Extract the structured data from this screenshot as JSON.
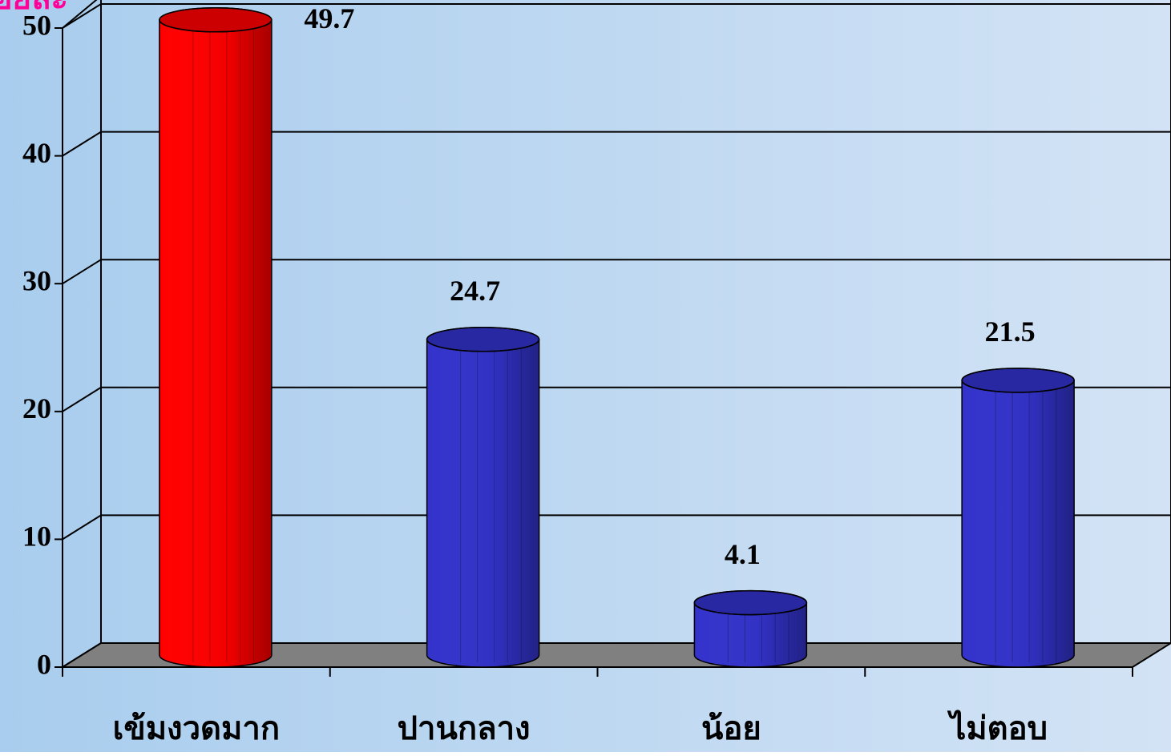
{
  "chart_data": {
    "type": "bar3d",
    "y_label": "ร้อยละ",
    "categories": [
      "เข้มงวดมาก",
      "ปานกลาง",
      "น้อย",
      "ไม่ตอบ"
    ],
    "values": [
      49.7,
      24.7,
      4.1,
      21.5
    ],
    "colors": [
      "#ff0000",
      "#3333cc",
      "#3333cc",
      "#3333cc"
    ],
    "ylim": [
      0,
      50
    ],
    "yticks": [
      0,
      10,
      20,
      30,
      40,
      50
    ],
    "grid": true
  }
}
